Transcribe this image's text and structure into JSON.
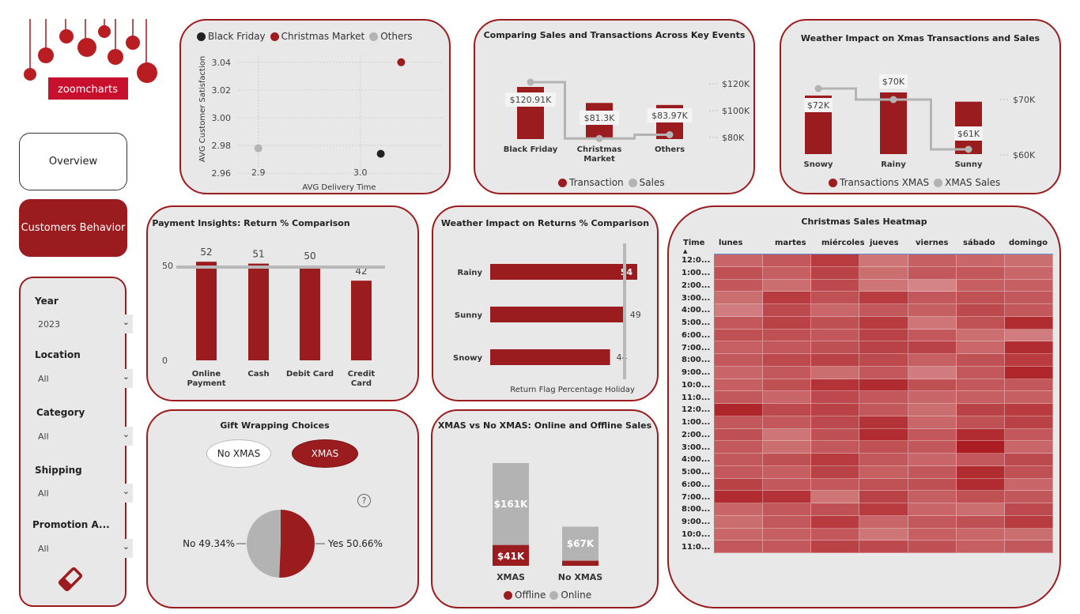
{
  "brand": {
    "logo_text": "zoomcharts"
  },
  "nav": {
    "overview_label": "Overview",
    "customers_label": "Customers Behavior"
  },
  "filters": {
    "year": {
      "label": "Year",
      "value": "2023"
    },
    "location": {
      "label": "Location",
      "value": "All"
    },
    "category": {
      "label": "Category",
      "value": "All"
    },
    "shipping": {
      "label": "Shipping",
      "value": "All"
    },
    "promotion": {
      "label": "Promotion A...",
      "value": "All"
    }
  },
  "colors": {
    "accent": "#9b1c1f",
    "grey": "#b3b3b3",
    "black": "#222222",
    "bg": "#e9e8e8"
  },
  "scatter": {
    "legend": [
      "Black Friday",
      "Christmas Market",
      "Others"
    ],
    "xlabel": "AVG Delivery Time",
    "ylabel": "AVG Customer Satisfaction",
    "yticks": [
      "3.04",
      "3.02",
      "3.00",
      "2.98",
      "2.96"
    ],
    "xticks": [
      "2.9",
      "3.0"
    ]
  },
  "events": {
    "title": "Comparing Sales and Transactions Across Key Events",
    "categories": [
      "Black Friday",
      "Christmas\nMarket",
      "Others"
    ],
    "labels": [
      "$120.91K",
      "$81.3K",
      "$83.97K"
    ],
    "ticks": [
      "$120K",
      "$100K",
      "$80K"
    ],
    "legend": [
      "Transaction",
      "Sales"
    ]
  },
  "weather_xmas": {
    "title": "Weather Impact on Xmas Transactions and Sales",
    "categories": [
      "Snowy",
      "Rainy",
      "Sunny"
    ],
    "labels": [
      "$72K",
      "$70K",
      "$61K"
    ],
    "ticks": [
      "$70K",
      "$60K"
    ],
    "legend": [
      "Transactions XMAS",
      "XMAS Sales"
    ]
  },
  "payment": {
    "title": "Payment Insights: Return % Comparison",
    "categories": [
      "Online\nPayment",
      "Cash",
      "Debit Card",
      "Credit\nCard"
    ],
    "values": [
      "52",
      "51",
      "50",
      "42"
    ],
    "ticks": [
      "50",
      "0"
    ]
  },
  "weather_returns": {
    "title": "Weather Impact on Returns % Comparison",
    "categories": [
      "Rainy",
      "Sunny",
      "Snowy"
    ],
    "values": [
      "54",
      "49",
      "44"
    ],
    "xlabel": "Return Flag Percentage Holiday"
  },
  "gift": {
    "title": "Gift Wrapping Choices",
    "toggle_off": "No XMAS",
    "toggle_on": "XMAS",
    "help_icon": "?",
    "no_label": "No 49.34%",
    "yes_label": "Yes 50.66%"
  },
  "xmas_online": {
    "title": "XMAS vs No XMAS: Online and Offline Sales",
    "categories": [
      "XMAS",
      "No XMAS"
    ],
    "online_labels": [
      "$161K",
      "$67K"
    ],
    "offline_labels": [
      "$41K",
      ""
    ],
    "legend": [
      "Offline",
      "Online"
    ]
  },
  "heatmap": {
    "title": "Christmas Sales Heatmap",
    "time_header": "Time",
    "days": [
      "lunes",
      "martes",
      "miércoles",
      "jueves",
      "viernes",
      "sábado",
      "domingo"
    ],
    "times": [
      "12:0...",
      "1:00...",
      "2:00...",
      "3:00...",
      "4:00...",
      "5:00...",
      "6:00...",
      "7:00...",
      "8:00...",
      "9:00...",
      "10:0...",
      "11:0...",
      "12:0...",
      "1:00...",
      "2:00...",
      "3:00...",
      "4:00...",
      "5:00...",
      "6:00...",
      "7:00...",
      "8:00...",
      "9:00...",
      "10:0...",
      "11:0..."
    ]
  },
  "chart_data": [
    {
      "type": "scatter",
      "title": "",
      "xlabel": "AVG Delivery Time",
      "ylabel": "AVG Customer Satisfaction",
      "xlim": [
        2.88,
        3.08
      ],
      "ylim": [
        2.955,
        3.045
      ],
      "series": [
        {
          "name": "Black Friday",
          "x": [
            3.02
          ],
          "y": [
            2.974
          ]
        },
        {
          "name": "Christmas Market",
          "x": [
            3.04
          ],
          "y": [
            3.04
          ]
        },
        {
          "name": "Others",
          "x": [
            2.9
          ],
          "y": [
            2.978
          ]
        }
      ]
    },
    {
      "type": "bar",
      "title": "Comparing Sales and Transactions Across Key Events",
      "categories": [
        "Black Friday",
        "Christmas Market",
        "Others"
      ],
      "series": [
        {
          "name": "Transaction",
          "values": [
            2.6,
            1.8,
            1.7
          ]
        },
        {
          "name": "Sales",
          "values": [
            120.91,
            81.3,
            83.97
          ]
        }
      ]
    },
    {
      "type": "bar",
      "title": "Weather Impact on Xmas Transactions and Sales",
      "categories": [
        "Snowy",
        "Rainy",
        "Sunny"
      ],
      "series": [
        {
          "name": "Transactions XMAS",
          "values": [
            0.95,
            1.0,
            0.85
          ]
        },
        {
          "name": "XMAS Sales",
          "values": [
            72,
            70,
            61
          ]
        }
      ]
    },
    {
      "type": "bar",
      "title": "Payment Insights: Return % Comparison",
      "categories": [
        "Online Payment",
        "Cash",
        "Debit Card",
        "Credit Card"
      ],
      "values": [
        52,
        51,
        50,
        42
      ],
      "ylim": [
        0,
        55
      ]
    },
    {
      "type": "bar",
      "title": "Weather Impact on Returns % Comparison",
      "categories": [
        "Rainy",
        "Sunny",
        "Snowy"
      ],
      "values": [
        54,
        49,
        44
      ],
      "xlabel": "Return Flag Percentage Holiday"
    },
    {
      "type": "pie",
      "title": "Gift Wrapping Choices",
      "categories": [
        "No",
        "Yes"
      ],
      "values": [
        49.34,
        50.66
      ]
    },
    {
      "type": "bar",
      "title": "XMAS vs No XMAS: Online and Offline Sales",
      "categories": [
        "XMAS",
        "No XMAS"
      ],
      "series": [
        {
          "name": "Offline",
          "values": [
            41,
            10
          ]
        },
        {
          "name": "Online",
          "values": [
            161,
            67
          ]
        }
      ]
    },
    {
      "type": "heatmap",
      "title": "Christmas Sales Heatmap",
      "rows": 24,
      "cols": 7,
      "values": [
        [
          0.45,
          0.55,
          0.75,
          0.35,
          0.5,
          0.45,
          0.4
        ],
        [
          0.6,
          0.5,
          0.7,
          0.4,
          0.55,
          0.55,
          0.45
        ],
        [
          0.55,
          0.4,
          0.65,
          0.35,
          0.25,
          0.5,
          0.5
        ],
        [
          0.4,
          0.75,
          0.6,
          0.75,
          0.55,
          0.6,
          0.55
        ],
        [
          0.3,
          0.65,
          0.45,
          0.55,
          0.5,
          0.65,
          0.55
        ],
        [
          0.55,
          0.7,
          0.6,
          0.75,
          0.35,
          0.6,
          0.85
        ],
        [
          0.6,
          0.6,
          0.55,
          0.7,
          0.55,
          0.4,
          0.3
        ],
        [
          0.5,
          0.55,
          0.6,
          0.7,
          0.7,
          0.45,
          0.85
        ],
        [
          0.55,
          0.65,
          0.7,
          0.65,
          0.5,
          0.6,
          0.75
        ],
        [
          0.45,
          0.55,
          0.4,
          0.55,
          0.3,
          0.55,
          0.9
        ],
        [
          0.5,
          0.6,
          0.8,
          0.85,
          0.6,
          0.55,
          0.55
        ],
        [
          0.55,
          0.45,
          0.65,
          0.55,
          0.45,
          0.5,
          0.5
        ],
        [
          0.9,
          0.65,
          0.7,
          0.55,
          0.4,
          0.7,
          0.75
        ],
        [
          0.55,
          0.55,
          0.65,
          0.8,
          0.45,
          0.6,
          0.7
        ],
        [
          0.6,
          0.35,
          0.6,
          0.85,
          0.55,
          0.85,
          0.55
        ],
        [
          0.55,
          0.4,
          0.55,
          0.6,
          0.55,
          0.95,
          0.45
        ],
        [
          0.55,
          0.6,
          0.75,
          0.55,
          0.45,
          0.55,
          0.65
        ],
        [
          0.55,
          0.5,
          0.7,
          0.5,
          0.55,
          0.85,
          0.6
        ],
        [
          0.7,
          0.55,
          0.55,
          0.6,
          0.6,
          0.85,
          0.45
        ],
        [
          0.85,
          0.8,
          0.35,
          0.7,
          0.5,
          0.6,
          0.55
        ],
        [
          0.45,
          0.55,
          0.6,
          0.75,
          0.45,
          0.4,
          0.65
        ],
        [
          0.4,
          0.55,
          0.75,
          0.45,
          0.55,
          0.6,
          0.75
        ],
        [
          0.45,
          0.5,
          0.55,
          0.35,
          0.5,
          0.45,
          0.4
        ],
        [
          0.55,
          0.55,
          0.7,
          0.65,
          0.6,
          0.5,
          0.55
        ]
      ]
    }
  ]
}
